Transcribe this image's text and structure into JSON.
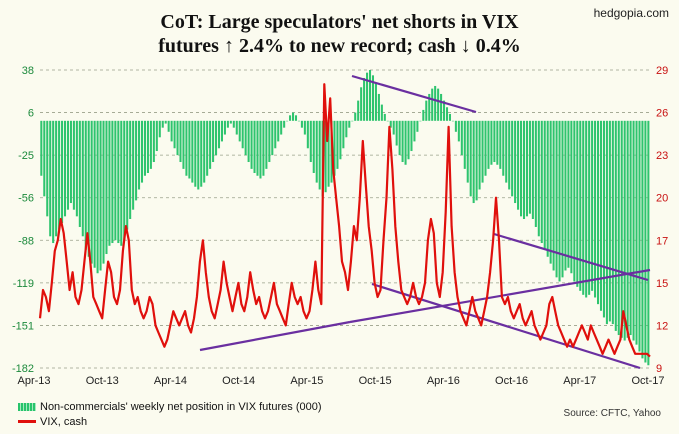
{
  "header": {
    "title_line1": "CoT: Large speculators' net shorts in VIX",
    "title_line2": "futures ↑ 2.4% to new record; cash ↓ 0.4%",
    "brand": "hedgopia.com"
  },
  "footer": {
    "source": "Source: CFTC, Yahoo"
  },
  "colors": {
    "bars": "#2ec46e",
    "vix": "#e0100c",
    "trendline": "#6a2fa0",
    "background": "#fbfbef",
    "grid": "#9aa08a"
  },
  "chart_data": {
    "type": "bar",
    "x_tick_labels": [
      "Apr-13",
      "Oct-13",
      "Apr-14",
      "Oct-14",
      "Apr-15",
      "Oct-15",
      "Apr-16",
      "Oct-16",
      "Apr-17",
      "Oct-17"
    ],
    "y_left_ticks": [
      38,
      6,
      -25,
      -56,
      -88,
      -119,
      -151,
      -182
    ],
    "y_right_ticks": [
      29,
      26,
      23,
      20,
      17,
      15,
      12,
      9
    ],
    "y_left_range": [
      -182,
      38
    ],
    "y_right_range": [
      9,
      29
    ],
    "grid": "horizontal dashed",
    "legend_position": "bottom-left",
    "series": [
      {
        "name": "Non-commercials' weekly net position in VIX futures (000)",
        "type": "bar",
        "axis": "left",
        "values": [
          -40,
          -55,
          -70,
          -85,
          -90,
          -85,
          -80,
          -75,
          -70,
          -65,
          -60,
          -65,
          -70,
          -78,
          -85,
          -95,
          -100,
          -105,
          -108,
          -112,
          -110,
          -105,
          -98,
          -92,
          -90,
          -88,
          -90,
          -92,
          -88,
          -80,
          -72,
          -65,
          -58,
          -50,
          -45,
          -40,
          -38,
          -35,
          -30,
          -22,
          -12,
          -5,
          -2,
          -8,
          -15,
          -20,
          -25,
          -30,
          -35,
          -40,
          -42,
          -45,
          -48,
          -50,
          -48,
          -45,
          -40,
          -35,
          -30,
          -25,
          -20,
          -15,
          -10,
          -5,
          -2,
          -5,
          -10,
          -15,
          -20,
          -25,
          -30,
          -35,
          -38,
          -40,
          -42,
          -40,
          -35,
          -30,
          -25,
          -20,
          -15,
          -10,
          -5,
          0,
          4,
          6,
          4,
          0,
          -5,
          -10,
          -20,
          -30,
          -38,
          -45,
          -50,
          -55,
          -52,
          -48,
          -45,
          -40,
          -35,
          -28,
          -20,
          -12,
          -5,
          0,
          6,
          15,
          25,
          32,
          36,
          38,
          34,
          28,
          20,
          12,
          5,
          0,
          -5,
          -10,
          -18,
          -25,
          -30,
          -32,
          -28,
          -22,
          -15,
          -8,
          0,
          8,
          15,
          20,
          24,
          26,
          24,
          20,
          15,
          10,
          5,
          0,
          -8,
          -15,
          -25,
          -35,
          -45,
          -55,
          -60,
          -58,
          -50,
          -45,
          -40,
          -35,
          -32,
          -30,
          -32,
          -35,
          -40,
          -45,
          -50,
          -55,
          -60,
          -65,
          -70,
          -72,
          -70,
          -68,
          -72,
          -78,
          -85,
          -90,
          -95,
          -100,
          -105,
          -110,
          -115,
          -118,
          -115,
          -110,
          -108,
          -112,
          -118,
          -122,
          -125,
          -128,
          -130,
          -128,
          -125,
          -130,
          -135,
          -140,
          -145,
          -150,
          -148,
          -150,
          -155,
          -158,
          -160,
          -162,
          -160,
          -158,
          -162,
          -165,
          -170,
          -175,
          -178,
          -180
        ]
      },
      {
        "name": "VIX, cash",
        "type": "line",
        "axis": "right",
        "values": [
          12.5,
          14.5,
          14,
          13,
          15,
          16.5,
          17,
          18.5,
          17.5,
          16,
          14.5,
          15.5,
          14,
          13.5,
          14.5,
          16,
          17.5,
          16,
          14,
          13.5,
          13,
          12.5,
          14.5,
          16,
          15.5,
          14,
          13.5,
          14.5,
          16.5,
          18,
          17,
          14.5,
          13.5,
          14,
          13,
          12.5,
          13,
          14,
          13.5,
          12,
          11.5,
          11,
          10.5,
          11,
          12,
          13,
          12.5,
          12,
          12.5,
          13,
          12,
          11.5,
          12.5,
          14,
          16,
          17,
          15.5,
          14,
          13,
          12.5,
          13.5,
          14.5,
          16,
          15,
          14,
          13,
          14,
          15,
          13.5,
          13,
          14,
          15.5,
          14.5,
          13.5,
          14,
          13,
          12.5,
          13,
          14,
          15,
          13.5,
          13,
          12.5,
          12,
          13.5,
          15,
          14,
          13.5,
          14,
          13,
          12.5,
          13,
          14.5,
          16,
          14.5,
          13.5,
          28,
          24,
          27,
          22,
          20,
          18,
          16,
          15.5,
          14.5,
          16,
          18,
          17,
          20,
          24,
          21,
          18,
          16.5,
          15,
          14,
          14.5,
          17,
          20,
          25,
          22,
          18,
          16,
          14.5,
          14,
          13.5,
          14,
          15,
          14,
          13.5,
          14,
          15,
          17,
          18.5,
          17.5,
          15,
          14,
          15.5,
          19,
          25,
          18,
          15.5,
          14,
          13,
          12.5,
          12,
          13,
          14,
          13,
          12.5,
          12,
          13,
          14,
          15.5,
          17,
          20,
          17,
          14,
          13.5,
          14,
          13,
          12.5,
          13,
          13.5,
          12.5,
          12,
          12.5,
          13,
          12,
          11.5,
          11,
          11.5,
          12,
          13.5,
          14,
          13,
          12,
          11.5,
          11,
          10.5,
          11,
          10.5,
          11,
          11.5,
          12,
          11.5,
          11,
          12,
          11.5,
          11,
          10.5,
          10,
          10.5,
          11,
          10.5,
          10,
          10.5,
          11,
          13,
          12,
          11,
          10.5,
          10,
          10,
          10,
          10,
          10,
          9.8
        ]
      }
    ]
  }
}
